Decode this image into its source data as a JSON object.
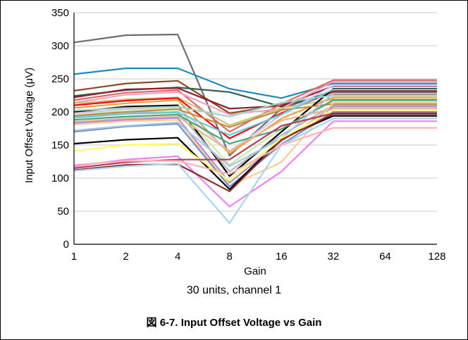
{
  "figure": {
    "subtitle": "30 units, channel 1",
    "caption": "図 6-7. Input Offset Voltage vs Gain"
  },
  "chart_data": {
    "type": "line",
    "title": "",
    "xlabel": "Gain",
    "ylabel": "Input Offset Voltage (μV)",
    "categories": [
      "1",
      "2",
      "4",
      "8",
      "16",
      "32",
      "64",
      "128"
    ],
    "ylim": [
      0,
      350
    ],
    "yticks": [
      0,
      50,
      100,
      150,
      200,
      250,
      300,
      350
    ],
    "grid": "horizontal",
    "legend": "none",
    "series": [
      {
        "color": "#6d6e71",
        "values": [
          305,
          316,
          317,
          134,
          205,
          232,
          232,
          232
        ]
      },
      {
        "color": "#1a8bbf",
        "values": [
          257,
          266,
          266,
          235,
          221,
          243,
          243,
          243
        ]
      },
      {
        "color": "#8b4a1e",
        "values": [
          232,
          243,
          247,
          198,
          211,
          226,
          226,
          226
        ]
      },
      {
        "color": "#2f5f4f",
        "values": [
          224,
          233,
          237,
          230,
          208,
          230,
          230,
          230
        ]
      },
      {
        "color": "#8d1f2f",
        "values": [
          222,
          234,
          236,
          205,
          209,
          239,
          239,
          239
        ]
      },
      {
        "color": "#e06666",
        "values": [
          218,
          229,
          233,
          170,
          212,
          248,
          248,
          248
        ]
      },
      {
        "color": "#f1a2c0",
        "values": [
          214,
          226,
          230,
          196,
          205,
          246,
          246,
          246
        ]
      },
      {
        "color": "#c9c27a",
        "values": [
          213,
          219,
          222,
          180,
          206,
          219,
          219,
          219
        ]
      },
      {
        "color": "#ff0000",
        "values": [
          210,
          217,
          221,
          160,
          198,
          231,
          231,
          231
        ]
      },
      {
        "color": "#e8a33d",
        "values": [
          206,
          213,
          218,
          137,
          190,
          222,
          222,
          222
        ]
      },
      {
        "color": "#000000",
        "values": [
          200,
          208,
          210,
          103,
          170,
          235,
          235,
          235
        ]
      },
      {
        "color": "#9ad3c9",
        "values": [
          202,
          206,
          208,
          193,
          214,
          225,
          225,
          225
        ]
      },
      {
        "color": "#d6c1f0",
        "values": [
          198,
          204,
          207,
          140,
          196,
          240,
          240,
          240
        ]
      },
      {
        "color": "#cfe8a4",
        "values": [
          195,
          203,
          206,
          120,
          175,
          216,
          216,
          216
        ]
      },
      {
        "color": "#c48a3f",
        "values": [
          194,
          200,
          204,
          177,
          203,
          212,
          212,
          212
        ]
      },
      {
        "color": "#b2b2b2",
        "values": [
          192,
          198,
          200,
          110,
          165,
          210,
          210,
          210
        ]
      },
      {
        "color": "#5fcde4",
        "values": [
          191,
          197,
          199,
          165,
          196,
          234,
          234,
          234
        ]
      },
      {
        "color": "#4aa37c",
        "values": [
          188,
          193,
          196,
          152,
          174,
          218,
          218,
          218
        ]
      },
      {
        "color": "#e9b48c",
        "values": [
          185,
          190,
          193,
          141,
          187,
          205,
          205,
          205
        ]
      },
      {
        "color": "#b88bd6",
        "values": [
          183,
          188,
          191,
          93,
          156,
          208,
          208,
          208
        ]
      },
      {
        "color": "#ffcc99",
        "values": [
          181,
          186,
          188,
          88,
          124,
          214,
          214,
          214
        ]
      },
      {
        "color": "#6f8fbf",
        "values": [
          170,
          178,
          182,
          87,
          151,
          200,
          200,
          200
        ]
      },
      {
        "color": "#a4c8ea",
        "values": [
          172,
          179,
          184,
          118,
          160,
          228,
          228,
          228
        ]
      },
      {
        "color": "#000000",
        "values": [
          152,
          158,
          161,
          83,
          160,
          194,
          194,
          194
        ]
      },
      {
        "color": "#ffff66",
        "values": [
          141,
          150,
          152,
          96,
          160,
          203,
          203,
          203
        ]
      },
      {
        "color": "#ee82ee",
        "values": [
          118,
          128,
          133,
          57,
          110,
          186,
          186,
          186
        ]
      },
      {
        "color": "#b83b5e",
        "values": [
          115,
          124,
          128,
          128,
          179,
          198,
          198,
          198
        ]
      },
      {
        "color": "#8b2c2c",
        "values": [
          112,
          120,
          121,
          80,
          158,
          197,
          197,
          197
        ]
      },
      {
        "color": "#a9d4f2",
        "values": [
          111,
          118,
          122,
          32,
          150,
          190,
          190,
          190
        ]
      },
      {
        "color": "#ffb3b3",
        "values": [
          120,
          126,
          126,
          106,
          150,
          176,
          176,
          176
        ]
      }
    ]
  }
}
